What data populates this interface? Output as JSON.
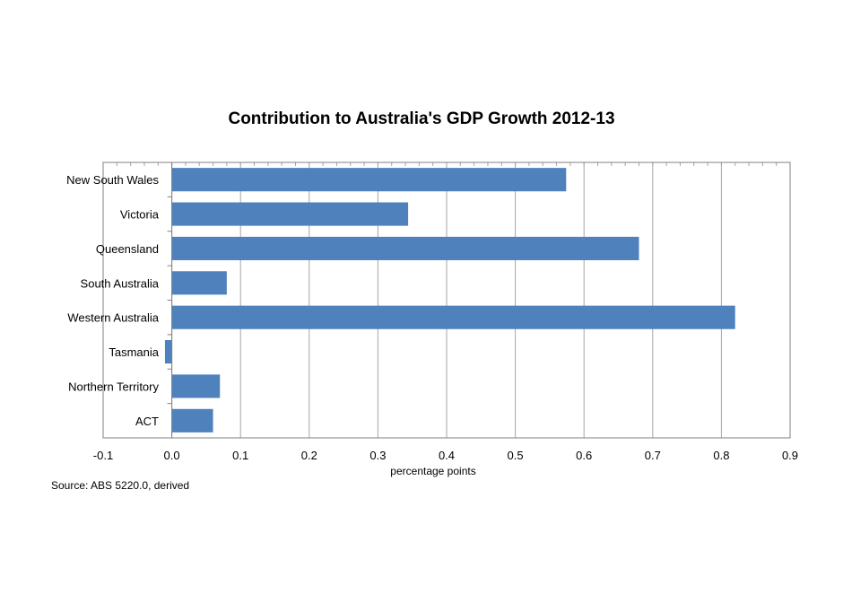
{
  "chart_data": {
    "type": "bar",
    "orientation": "horizontal",
    "title": "Contribution to Australia's GDP Growth 2012-13",
    "xlabel": "percentage points",
    "ylabel": "",
    "source": "Source: ABS 5220.0, derived",
    "categories": [
      "New South Wales",
      "Victoria",
      "Queensland",
      "South Australia",
      "Western Australia",
      "Tasmania",
      "Northern Territory",
      "ACT"
    ],
    "values": [
      0.574,
      0.344,
      0.68,
      0.08,
      0.82,
      -0.01,
      0.07,
      0.06
    ],
    "xlim": [
      -0.1,
      0.9
    ],
    "xticks": [
      "-0.1",
      "0.0",
      "0.1",
      "0.2",
      "0.3",
      "0.4",
      "0.5",
      "0.6",
      "0.7",
      "0.8",
      "0.9"
    ],
    "grid": "vertical",
    "bar_color": "#4f81bd",
    "grid_color": "#a6a6a6"
  }
}
